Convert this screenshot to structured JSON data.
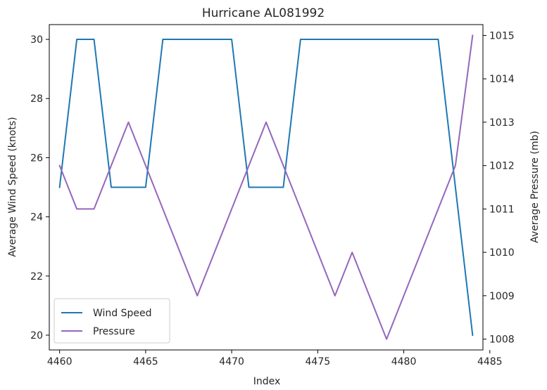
{
  "chart_data": {
    "type": "line",
    "title": "Hurricane AL081992",
    "xlabel": "Index",
    "ylabel_left": "Average Wind Speed (knots)",
    "ylabel_right": "Average Pressure (mb)",
    "x": [
      4460,
      4461,
      4462,
      4463,
      4464,
      4465,
      4466,
      4467,
      4468,
      4469,
      4470,
      4471,
      4472,
      4473,
      4474,
      4475,
      4476,
      4477,
      4478,
      4479,
      4480,
      4481,
      4482,
      4483,
      4484
    ],
    "xlim": [
      4459.4,
      4484.6
    ],
    "ylim_left": [
      19.5,
      30.5
    ],
    "ylim_right": [
      1007.75,
      1015.25
    ],
    "x_ticks": [
      4460,
      4465,
      4470,
      4475,
      4480,
      4485
    ],
    "y_ticks_left": [
      20,
      22,
      24,
      26,
      28,
      30
    ],
    "y_ticks_right": [
      1008,
      1009,
      1010,
      1011,
      1012,
      1013,
      1014,
      1015
    ],
    "legend_placement": "lower-left",
    "grid": false,
    "series": [
      {
        "name": "Wind Speed",
        "axis": "left",
        "color": "#1f77b4",
        "values": [
          25,
          30,
          30,
          25,
          25,
          25,
          30,
          30,
          30,
          30,
          30,
          25,
          25,
          25,
          30,
          30,
          30,
          30,
          30,
          30,
          30,
          30,
          30,
          25,
          20
        ]
      },
      {
        "name": "Pressure",
        "axis": "right",
        "color": "#9467bd",
        "values": [
          1012,
          1011,
          1011,
          1012,
          1013,
          1012,
          1011,
          1010,
          1009,
          1010,
          1011,
          1012,
          1013,
          1012,
          1011,
          1010,
          1009,
          1010,
          1009,
          1008,
          1009,
          1010,
          1011,
          1012,
          1015
        ]
      }
    ]
  }
}
